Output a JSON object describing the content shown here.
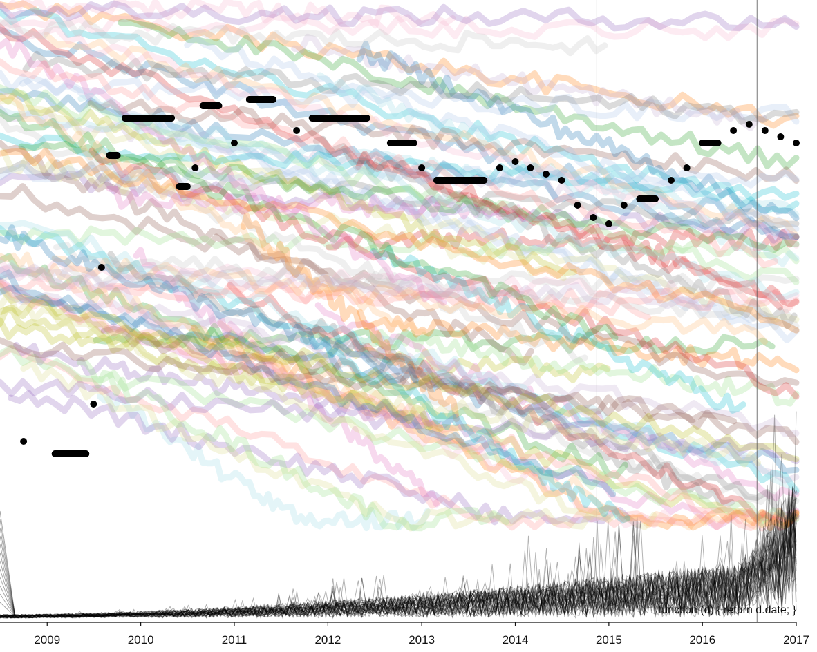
{
  "chart_data": {
    "type": "scatter",
    "title": "",
    "xlabel": "",
    "ylabel": "",
    "x_axis": {
      "type": "time",
      "xlim": [
        "2008-07-01",
        "2017-01-01"
      ],
      "ticks": [
        "2009",
        "2010",
        "2011",
        "2012",
        "2013",
        "2014",
        "2015",
        "2016",
        "2017"
      ]
    },
    "ylim": [
      0,
      100
    ],
    "grid": false,
    "legend": "none",
    "annotation": "function (d) { return d.date; }",
    "reference_lines": [
      "2014-11-15",
      "2016-08-01"
    ],
    "highlight_series": {
      "color": "#000000",
      "points": [
        [
          "2008-10-01",
          29
        ],
        [
          "2009-02-01",
          27
        ],
        [
          "2009-03-01",
          27
        ],
        [
          "2009-04-01",
          27
        ],
        [
          "2009-05-01",
          27
        ],
        [
          "2009-06-01",
          27
        ],
        [
          "2009-07-01",
          35
        ],
        [
          "2009-08-01",
          57
        ],
        [
          "2009-09-01",
          75
        ],
        [
          "2009-10-01",
          75
        ],
        [
          "2009-11-01",
          81
        ],
        [
          "2009-12-01",
          81
        ],
        [
          "2010-02-01",
          81
        ],
        [
          "2010-05-01",
          81
        ],
        [
          "2010-06-01",
          70
        ],
        [
          "2010-07-01",
          70
        ],
        [
          "2010-08-01",
          73
        ],
        [
          "2010-09-01",
          83
        ],
        [
          "2010-10-01",
          83
        ],
        [
          "2010-11-01",
          83
        ],
        [
          "2011-01-01",
          77
        ],
        [
          "2011-03-01",
          84
        ],
        [
          "2011-06-01",
          84
        ],
        [
          "2011-09-01",
          79
        ],
        [
          "2011-11-01",
          81
        ],
        [
          "2012-03-01",
          81
        ],
        [
          "2012-06-01",
          81
        ],
        [
          "2012-09-01",
          77
        ],
        [
          "2012-12-01",
          77
        ],
        [
          "2013-01-01",
          73
        ],
        [
          "2013-03-01",
          71
        ],
        [
          "2013-06-01",
          71
        ],
        [
          "2013-09-01",
          71
        ],
        [
          "2013-11-01",
          73
        ],
        [
          "2014-01-01",
          74
        ],
        [
          "2014-03-01",
          73
        ],
        [
          "2014-05-01",
          72
        ],
        [
          "2014-07-01",
          71
        ],
        [
          "2014-09-01",
          67
        ],
        [
          "2014-11-01",
          65
        ],
        [
          "2015-01-01",
          64
        ],
        [
          "2015-03-01",
          67
        ],
        [
          "2015-05-01",
          68
        ],
        [
          "2015-07-01",
          68
        ],
        [
          "2015-09-01",
          71
        ],
        [
          "2015-11-01",
          73
        ],
        [
          "2016-01-01",
          77
        ],
        [
          "2016-03-01",
          77
        ],
        [
          "2016-05-01",
          79
        ],
        [
          "2016-07-01",
          80
        ],
        [
          "2016-09-01",
          79
        ],
        [
          "2016-11-01",
          78
        ],
        [
          "2017-01-01",
          77
        ]
      ]
    },
    "background_series_colors": [
      "#1f77b4",
      "#ff7f0e",
      "#2ca02c",
      "#d62728",
      "#9467bd",
      "#8c564b",
      "#e377c2",
      "#7f7f7f",
      "#bcbd22",
      "#17becf",
      "#aec7e8",
      "#ffbb78",
      "#98df8a",
      "#ff9896",
      "#c5b0d5",
      "#f7b6d2",
      "#c7c7c7",
      "#dbdb8d",
      "#9edae5"
    ],
    "background_series_count": 96,
    "background_opacity": 0.28,
    "volume_series": {
      "color": "#000000",
      "count": 40,
      "opacity": 0.3,
      "ylim": [
        0,
        40
      ]
    }
  }
}
